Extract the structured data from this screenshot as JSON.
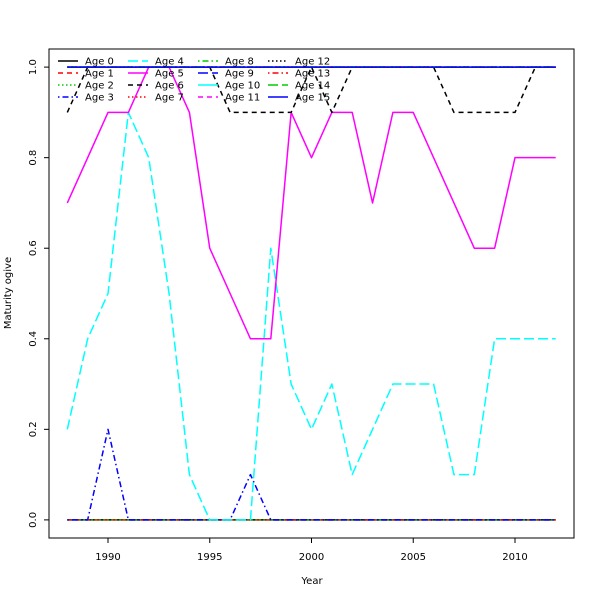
{
  "chart_data": {
    "type": "line",
    "title": "",
    "xlabel": "Year",
    "ylabel": "Maturity ogive",
    "xlim": [
      1987.1,
      2012.9
    ],
    "ylim": [
      -0.04,
      1.04
    ],
    "xticks": [
      1990,
      1995,
      2000,
      2005,
      2010
    ],
    "yticks": [
      0.0,
      0.2,
      0.4,
      0.6,
      0.8,
      1.0
    ],
    "ytick_labels": [
      "0.0",
      "0.2",
      "0.4",
      "0.6",
      "0.8",
      "1.0"
    ],
    "grid": false,
    "legend_position": "top-left",
    "legend_columns": 4,
    "x": [
      1988,
      1989,
      1990,
      1991,
      1992,
      1993,
      1994,
      1995,
      1996,
      1997,
      1998,
      1999,
      2000,
      2001,
      2002,
      2003,
      2004,
      2005,
      2006,
      2007,
      2008,
      2009,
      2010,
      2011,
      2012
    ],
    "series": [
      {
        "name": "Age 0",
        "color": "#000000",
        "dash": "solid",
        "values": [
          0,
          0,
          0,
          0,
          0,
          0,
          0,
          0,
          0,
          0,
          0,
          0,
          0,
          0,
          0,
          0,
          0,
          0,
          0,
          0,
          0,
          0,
          0,
          0,
          0
        ]
      },
      {
        "name": "Age 1",
        "color": "#ff0000",
        "dash": "dashed",
        "values": [
          0,
          0,
          0,
          0,
          0,
          0,
          0,
          0,
          0,
          0,
          0,
          0,
          0,
          0,
          0,
          0,
          0,
          0,
          0,
          0,
          0,
          0,
          0,
          0,
          0
        ]
      },
      {
        "name": "Age 2",
        "color": "#00cd00",
        "dash": "dotted",
        "values": [
          0,
          0,
          0,
          0,
          0,
          0,
          0,
          0,
          0,
          0,
          0,
          0,
          0,
          0,
          0,
          0,
          0,
          0,
          0,
          0,
          0,
          0,
          0,
          0,
          0
        ]
      },
      {
        "name": "Age 3",
        "color": "#0000ff",
        "dash": "dotdash",
        "values": [
          0,
          0,
          0.2,
          0,
          0,
          0,
          0,
          0,
          0,
          0.1,
          0,
          0,
          0,
          0,
          0,
          0,
          0,
          0,
          0,
          0,
          0,
          0,
          0,
          0,
          0
        ]
      },
      {
        "name": "Age 4",
        "color": "#00ffff",
        "dash": "longdash",
        "values": [
          0.2,
          0.4,
          0.5,
          0.9,
          0.8,
          0.5,
          0.1,
          0,
          0,
          0,
          0.6,
          0.3,
          0.2,
          0.3,
          0.1,
          0.2,
          0.3,
          0.3,
          0.3,
          0.1,
          0.1,
          0.4,
          0.4,
          0.4,
          0.4
        ]
      },
      {
        "name": "Age 5",
        "color": "#ff00ff",
        "dash": "solid",
        "values": [
          0.7,
          0.8,
          0.9,
          0.9,
          1,
          1,
          0.9,
          0.6,
          0.5,
          0.4,
          0.4,
          0.9,
          0.8,
          0.9,
          0.9,
          0.7,
          0.9,
          0.9,
          0.8,
          0.7,
          0.6,
          0.6,
          0.8,
          0.8,
          0.8
        ]
      },
      {
        "name": "Age 6",
        "color": "#000000",
        "dash": "dashed",
        "values": [
          0.9,
          1,
          1,
          1,
          1,
          1,
          1,
          1,
          0.9,
          0.9,
          0.9,
          0.9,
          1,
          0.9,
          1,
          1,
          1,
          1,
          1,
          0.9,
          0.9,
          0.9,
          0.9,
          1,
          1
        ]
      },
      {
        "name": "Age 7",
        "color": "#ff0000",
        "dash": "dotted",
        "values": [
          1,
          1,
          1,
          1,
          1,
          1,
          1,
          1,
          1,
          1,
          1,
          1,
          1,
          1,
          1,
          1,
          1,
          1,
          1,
          1,
          1,
          1,
          1,
          1,
          1
        ]
      },
      {
        "name": "Age 8",
        "color": "#00cd00",
        "dash": "dotdash",
        "values": [
          1,
          1,
          1,
          1,
          1,
          1,
          1,
          1,
          1,
          1,
          1,
          1,
          1,
          1,
          1,
          1,
          1,
          1,
          1,
          1,
          1,
          1,
          1,
          1,
          1
        ]
      },
      {
        "name": "Age 9",
        "color": "#0000ff",
        "dash": "longdash",
        "values": [
          1,
          1,
          1,
          1,
          1,
          1,
          1,
          1,
          1,
          1,
          1,
          1,
          1,
          1,
          1,
          1,
          1,
          1,
          1,
          1,
          1,
          1,
          1,
          1,
          1
        ]
      },
      {
        "name": "Age 10",
        "color": "#00ffff",
        "dash": "solid",
        "values": [
          1,
          1,
          1,
          1,
          1,
          1,
          1,
          1,
          1,
          1,
          1,
          1,
          1,
          1,
          1,
          1,
          1,
          1,
          1,
          1,
          1,
          1,
          1,
          1,
          1
        ]
      },
      {
        "name": "Age 11",
        "color": "#ff00ff",
        "dash": "dashed",
        "values": [
          1,
          1,
          1,
          1,
          1,
          1,
          1,
          1,
          1,
          1,
          1,
          1,
          1,
          1,
          1,
          1,
          1,
          1,
          1,
          1,
          1,
          1,
          1,
          1,
          1
        ]
      },
      {
        "name": "Age 12",
        "color": "#000000",
        "dash": "dotted",
        "values": [
          1,
          1,
          1,
          1,
          1,
          1,
          1,
          1,
          1,
          1,
          1,
          1,
          1,
          1,
          1,
          1,
          1,
          1,
          1,
          1,
          1,
          1,
          1,
          1,
          1
        ]
      },
      {
        "name": "Age 13",
        "color": "#ff0000",
        "dash": "dotdash",
        "values": [
          1,
          1,
          1,
          1,
          1,
          1,
          1,
          1,
          1,
          1,
          1,
          1,
          1,
          1,
          1,
          1,
          1,
          1,
          1,
          1,
          1,
          1,
          1,
          1,
          1
        ]
      },
      {
        "name": "Age 14",
        "color": "#00cd00",
        "dash": "longdash",
        "values": [
          1,
          1,
          1,
          1,
          1,
          1,
          1,
          1,
          1,
          1,
          1,
          1,
          1,
          1,
          1,
          1,
          1,
          1,
          1,
          1,
          1,
          1,
          1,
          1,
          1
        ]
      },
      {
        "name": "Age 15",
        "color": "#0000ff",
        "dash": "solid",
        "values": [
          1,
          1,
          1,
          1,
          1,
          1,
          1,
          1,
          1,
          1,
          1,
          1,
          1,
          1,
          1,
          1,
          1,
          1,
          1,
          1,
          1,
          1,
          1,
          1,
          1
        ]
      }
    ]
  }
}
